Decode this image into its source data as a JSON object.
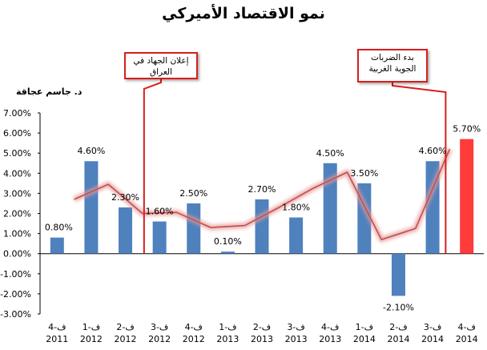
{
  "title": "نمو الاقتصاد الأميركي",
  "author": "د. جاسم عجاقة",
  "annotations": [
    {
      "text": "إعلان الجهاد في العراق",
      "line1": "إعلان الجهاد في",
      "line2": "العراق"
    },
    {
      "text": "بدء الضربات الجوية الغربية",
      "line1": "بدء الضربات",
      "line2": "الجوية الغربية"
    }
  ],
  "colors": {
    "bar": "#4f81bd",
    "highlight_bar": "#ff3b3b",
    "trend": "#c0504d",
    "annotation": "#d81e1e"
  },
  "chart_data": {
    "type": "bar",
    "title": "نمو الاقتصاد الأميركي",
    "xlabel": "",
    "ylabel": "",
    "ylim": [
      -3,
      7
    ],
    "yticks": [
      "7.00%",
      "6.00%",
      "5.00%",
      "4.00%",
      "3.00%",
      "2.00%",
      "1.00%",
      "0.00%",
      "-1.00%",
      "-2.00%",
      "-3.00%"
    ],
    "grid": false,
    "categories": [
      {
        "quarter": "ف-4",
        "year": "2011"
      },
      {
        "quarter": "ف-1",
        "year": "2012"
      },
      {
        "quarter": "ف-2",
        "year": "2012"
      },
      {
        "quarter": "ف-3",
        "year": "2012"
      },
      {
        "quarter": "ف-4",
        "year": "2012"
      },
      {
        "quarter": "ف-1",
        "year": "2013"
      },
      {
        "quarter": "ف-2",
        "year": "2013"
      },
      {
        "quarter": "ف-3",
        "year": "2013"
      },
      {
        "quarter": "ف-4",
        "year": "2013"
      },
      {
        "quarter": "ف-1",
        "year": "2014"
      },
      {
        "quarter": "ف-2",
        "year": "2014"
      },
      {
        "quarter": "ف-3",
        "year": "2014"
      },
      {
        "quarter": "ف-4",
        "year": "2014"
      }
    ],
    "values": [
      0.8,
      4.6,
      2.3,
      1.6,
      2.5,
      0.1,
      2.7,
      1.8,
      4.5,
      3.5,
      -2.1,
      4.6,
      5.7
    ],
    "labels": [
      "0.80%",
      "4.60%",
      "2.30%",
      "1.60%",
      "2.50%",
      "0.10%",
      "2.70%",
      "1.80%",
      "4.50%",
      "3.50%",
      "-2.10%",
      "4.60%",
      "5.70%"
    ],
    "highlight_index": 12,
    "trend_values": [
      2.7,
      3.45,
      2.0,
      2.05,
      1.3,
      1.4,
      2.3,
      3.25,
      4.05,
      0.7,
      1.25,
      5.2
    ],
    "annotation_after_index": [
      3,
      11
    ]
  }
}
